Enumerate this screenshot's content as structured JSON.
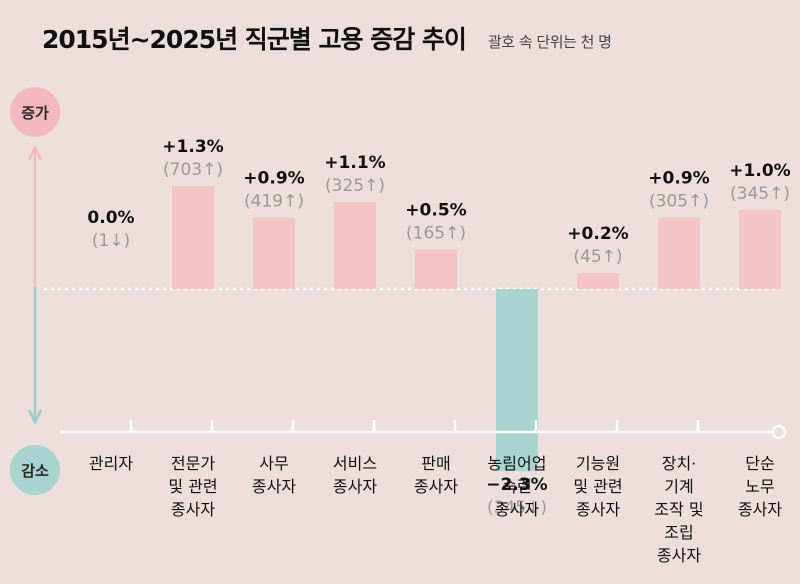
{
  "title": "2015년~2025년 직군별 고용 증감 추이",
  "unit_note": "괄호 속 단위는 천 명",
  "badges": {
    "increase": "증가",
    "decrease": "감소"
  },
  "colors": {
    "background": "#ecdedd",
    "increase": "#f5c4c9",
    "decrease": "#a9d3cf",
    "arrow_up": "#f5b8c0",
    "arrow_down": "#9dcbc6",
    "value_label": "#111111",
    "paren_label": "#9a9a9a"
  },
  "chart_data": {
    "type": "bar",
    "categories": [
      [
        "관리자"
      ],
      [
        "전문가",
        "및 관련",
        "종사자"
      ],
      [
        "사무",
        "종사자"
      ],
      [
        "서비스",
        "종사자"
      ],
      [
        "판매",
        "종사자"
      ],
      [
        "농림어업",
        "숙련",
        "종사자"
      ],
      [
        "기능원",
        "및 관련",
        "종사자"
      ],
      [
        "장치·",
        "기계",
        "조작 및",
        "조립",
        "종사자"
      ],
      [
        "단순",
        "노무",
        "종사자"
      ]
    ],
    "values": [
      0.0,
      1.3,
      0.9,
      1.1,
      0.5,
      -2.3,
      0.2,
      0.9,
      1.0
    ],
    "value_labels": [
      "0.0%",
      "+1.3%",
      "+0.9%",
      "+1.1%",
      "+0.5%",
      "−2.3%",
      "+0.2%",
      "+0.9%",
      "+1.0%"
    ],
    "count_labels": [
      "(1↓)",
      "(703↑)",
      "(419↑)",
      "(325↑)",
      "(165↑)",
      "(345↓)",
      "(45↑)",
      "(305↑)",
      "(345↑)"
    ],
    "baseline": 0
  }
}
